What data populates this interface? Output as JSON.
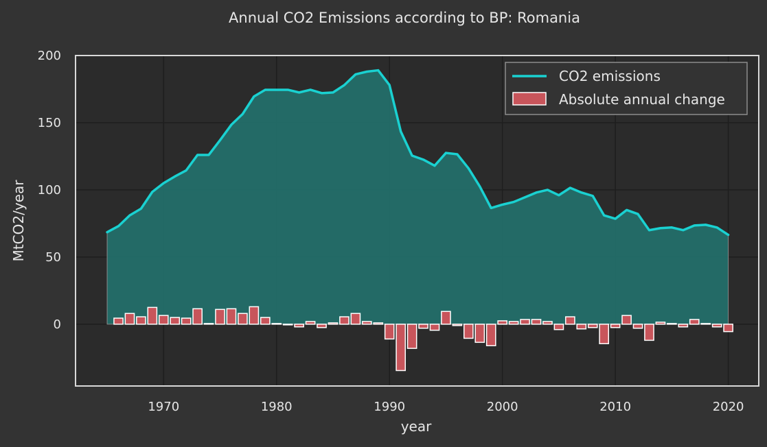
{
  "chart_data": {
    "type": "line",
    "title": "Annual CO2 Emissions according to BP: Romania",
    "xlabel": "year",
    "ylabel": "MtCO2/year",
    "xlim": [
      1962.2,
      2022.7
    ],
    "ylim": [
      -46,
      200
    ],
    "xticks": [
      1970,
      1980,
      1990,
      2000,
      2010,
      2020
    ],
    "yticks": [
      0,
      50,
      100,
      150,
      200
    ],
    "grid": true,
    "legend_position": "top-right",
    "colors": {
      "background": "#333333",
      "plot_background": "#2b2b2b",
      "grid": "#1e1e1e",
      "frame": "#d9d9d9",
      "line": "#1ad1d1",
      "area_fill": "#236e69",
      "bar_fill": "#c8555b",
      "bar_edge": "#ffffff",
      "text": "#e6e6e6"
    },
    "x": [
      1965,
      1966,
      1967,
      1968,
      1969,
      1970,
      1971,
      1972,
      1973,
      1974,
      1975,
      1976,
      1977,
      1978,
      1979,
      1980,
      1981,
      1982,
      1983,
      1984,
      1985,
      1986,
      1987,
      1988,
      1989,
      1990,
      1991,
      1992,
      1993,
      1994,
      1995,
      1996,
      1997,
      1998,
      1999,
      2000,
      2001,
      2002,
      2003,
      2004,
      2005,
      2006,
      2007,
      2008,
      2009,
      2010,
      2011,
      2012,
      2013,
      2014,
      2015,
      2016,
      2017,
      2018,
      2019,
      2020
    ],
    "series": [
      {
        "name": "CO2 emissions",
        "kind": "line-area",
        "values": [
          68.5,
          73,
          81,
          86,
          98.5,
          105,
          110,
          114.5,
          126,
          126,
          137,
          148.5,
          156.5,
          169.5,
          174.5,
          174.5,
          174.5,
          172.5,
          174.5,
          172,
          172.5,
          178,
          186,
          188,
          189,
          178,
          143.5,
          125.5,
          122.5,
          118,
          127.5,
          126.5,
          116,
          102.5,
          86.5,
          89,
          91,
          94.5,
          98,
          100,
          96,
          101.5,
          98,
          95.5,
          81,
          78.5,
          85,
          82,
          70,
          71.5,
          72,
          70,
          73.5,
          74,
          72,
          66.5
        ]
      },
      {
        "name": "Absolute annual change",
        "kind": "bar",
        "values": [
          null,
          4.5,
          8,
          5.5,
          12.5,
          6.5,
          5,
          4.5,
          11.5,
          0.5,
          11,
          11.5,
          8,
          13,
          5,
          0.5,
          -0.5,
          -2,
          2,
          -2.5,
          1,
          5.5,
          8,
          2,
          1,
          -11,
          -34.5,
          -18,
          -3,
          -4.5,
          9.5,
          -1,
          -10.5,
          -13.5,
          -16,
          2.5,
          2,
          3.5,
          3.5,
          2,
          -4,
          5.5,
          -3.5,
          -2.5,
          -14.5,
          -2.5,
          6.5,
          -3,
          -12,
          1.5,
          0.5,
          -2,
          3.5,
          0.5,
          -2,
          -5.5
        ]
      }
    ]
  }
}
